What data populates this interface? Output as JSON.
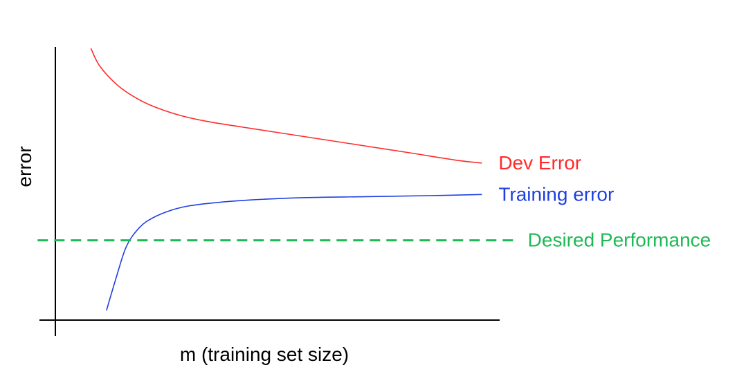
{
  "chart_data": {
    "type": "line",
    "title": "",
    "xlabel": "m (training set size)",
    "ylabel": "error",
    "grid": false,
    "legend": "none",
    "xlim": [
      0,
      100
    ],
    "ylim": [
      0,
      100
    ],
    "series": [
      {
        "name": "Dev Error",
        "color": "#ff2b2b",
        "style": "solid",
        "x": [
          8,
          10,
          14,
          18,
          22,
          28,
          34,
          42,
          50,
          60,
          70,
          80,
          90,
          96
        ],
        "y": [
          99.5,
          93,
          86,
          81.5,
          78.3,
          75,
          72.8,
          70.7,
          68.7,
          66.2,
          63.7,
          61.2,
          58.6,
          57.5
        ]
      },
      {
        "name": "Training error",
        "color": "#1f3fe0",
        "style": "solid",
        "x": [
          11.5,
          13.5,
          16,
          19,
          22,
          26,
          30,
          36,
          44,
          55,
          70,
          85,
          96
        ],
        "y": [
          3.5,
          14.5,
          27,
          34,
          37.5,
          40.2,
          41.8,
          43,
          44,
          44.8,
          45.2,
          45.6,
          46
        ]
      },
      {
        "name": "Desired Performance",
        "color": "#1db954",
        "style": "dashed",
        "x": [
          -4,
          104
        ],
        "y": [
          29.2,
          29.2
        ]
      }
    ]
  }
}
